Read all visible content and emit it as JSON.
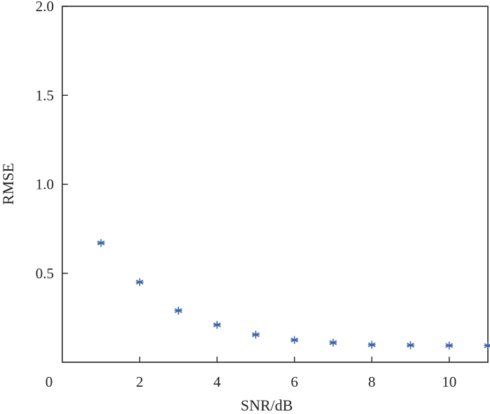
{
  "chart_data": {
    "type": "scatter",
    "xlabel": "SNR/dB",
    "ylabel": "RMSE",
    "xlim": [
      0,
      11
    ],
    "ylim": [
      0,
      2.0
    ],
    "grid": false,
    "origin_label": "0",
    "x_ticks": [
      2,
      4,
      6,
      8,
      10
    ],
    "x_tick_labels": [
      "2",
      "4",
      "6",
      "8",
      "10"
    ],
    "y_ticks": [
      0.5,
      1.0,
      1.5,
      2.0
    ],
    "y_tick_labels": [
      "0.5",
      "1.0",
      "1.5",
      "2.0"
    ],
    "marker": "asterisk",
    "marker_color": "#3a63a8",
    "series": [
      {
        "x": [
          1,
          2,
          3,
          4,
          5,
          6,
          7,
          8,
          9,
          10,
          11
        ],
        "y": [
          0.67,
          0.45,
          0.29,
          0.21,
          0.155,
          0.125,
          0.11,
          0.098,
          0.096,
          0.094,
          0.093
        ]
      }
    ]
  }
}
